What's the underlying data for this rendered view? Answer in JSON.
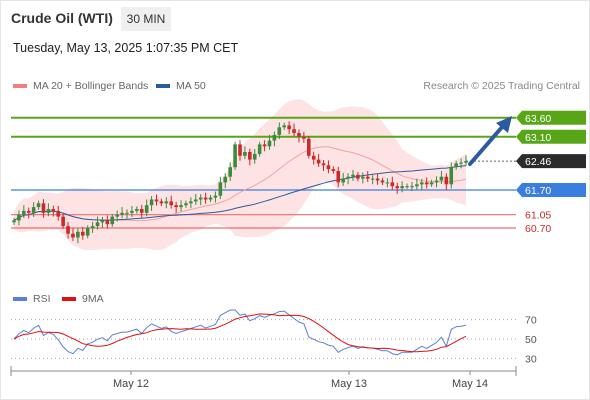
{
  "header": {
    "title": "Crude Oil (WTI)",
    "interval": "30 MIN",
    "datetime": "Tuesday, May 13, 2025 1:07:35 PM CET",
    "credit": "Research © 2025 Trading Central"
  },
  "legend": {
    "ma20": {
      "label": "MA 20 + Bollinger Bands",
      "color": "#f08080"
    },
    "ma50": {
      "label": "MA 50",
      "color": "#2c5aa0"
    },
    "rsi": {
      "label": "RSI",
      "color": "#5b7fd6"
    },
    "ma9": {
      "label": "9MA",
      "color": "#e01010"
    }
  },
  "colors": {
    "resistance": "#58a618",
    "support": "#3a7ee0",
    "minor_support": "#e87070",
    "current": "#2b2b2b",
    "candle_up": "#3c8a3c",
    "candle_down": "#cc2a2a",
    "arrow": "#2c5aa0",
    "band_fill": "#fde3e3"
  },
  "chart_data": [
    {
      "type": "candlestick",
      "title": "Crude Oil (WTI) 30 MIN",
      "x_ticks": [
        "May 12",
        "May 13",
        "May 14"
      ],
      "ylim": [
        59.2,
        64.2
      ],
      "levels": [
        {
          "value": 63.6,
          "label": "63.60",
          "kind": "resistance"
        },
        {
          "value": 63.1,
          "label": "63.10",
          "kind": "resistance"
        },
        {
          "value": 62.46,
          "label": "62.46",
          "kind": "current"
        },
        {
          "value": 61.7,
          "label": "61.70",
          "kind": "support"
        },
        {
          "value": 61.05,
          "label": "61.05",
          "kind": "minor_support"
        },
        {
          "value": 60.7,
          "label": "60.70",
          "kind": "minor_support"
        }
      ],
      "close": [
        60.9,
        61.05,
        61.15,
        61.1,
        61.25,
        61.35,
        61.1,
        61.2,
        61.15,
        61.0,
        60.75,
        60.55,
        60.45,
        60.6,
        60.5,
        60.7,
        60.75,
        60.85,
        60.9,
        60.8,
        61.0,
        61.05,
        61.1,
        61.1,
        61.15,
        61.2,
        61.1,
        61.3,
        61.45,
        61.4,
        61.35,
        61.4,
        61.3,
        61.25,
        61.3,
        61.35,
        61.4,
        61.45,
        61.5,
        61.45,
        61.5,
        61.55,
        61.9,
        62.05,
        62.3,
        62.9,
        62.6,
        62.7,
        62.5,
        62.65,
        62.9,
        62.85,
        63.0,
        63.15,
        63.35,
        63.4,
        63.3,
        63.2,
        63.1,
        63.05,
        62.6,
        62.5,
        62.4,
        62.35,
        62.25,
        62.2,
        61.9,
        62.0,
        62.05,
        62.1,
        62.0,
        62.05,
        62.0,
        62.0,
        61.95,
        61.9,
        61.9,
        61.8,
        61.75,
        61.8,
        61.8,
        61.8,
        61.85,
        61.9,
        61.85,
        61.9,
        61.95,
        62.05,
        61.85,
        62.3,
        62.4,
        62.42,
        62.46
      ],
      "series": [
        {
          "name": "RSI",
          "ylim": [
            20,
            80
          ],
          "ticks": [
            70,
            50,
            30
          ]
        },
        {
          "name": "9MA"
        }
      ]
    }
  ]
}
